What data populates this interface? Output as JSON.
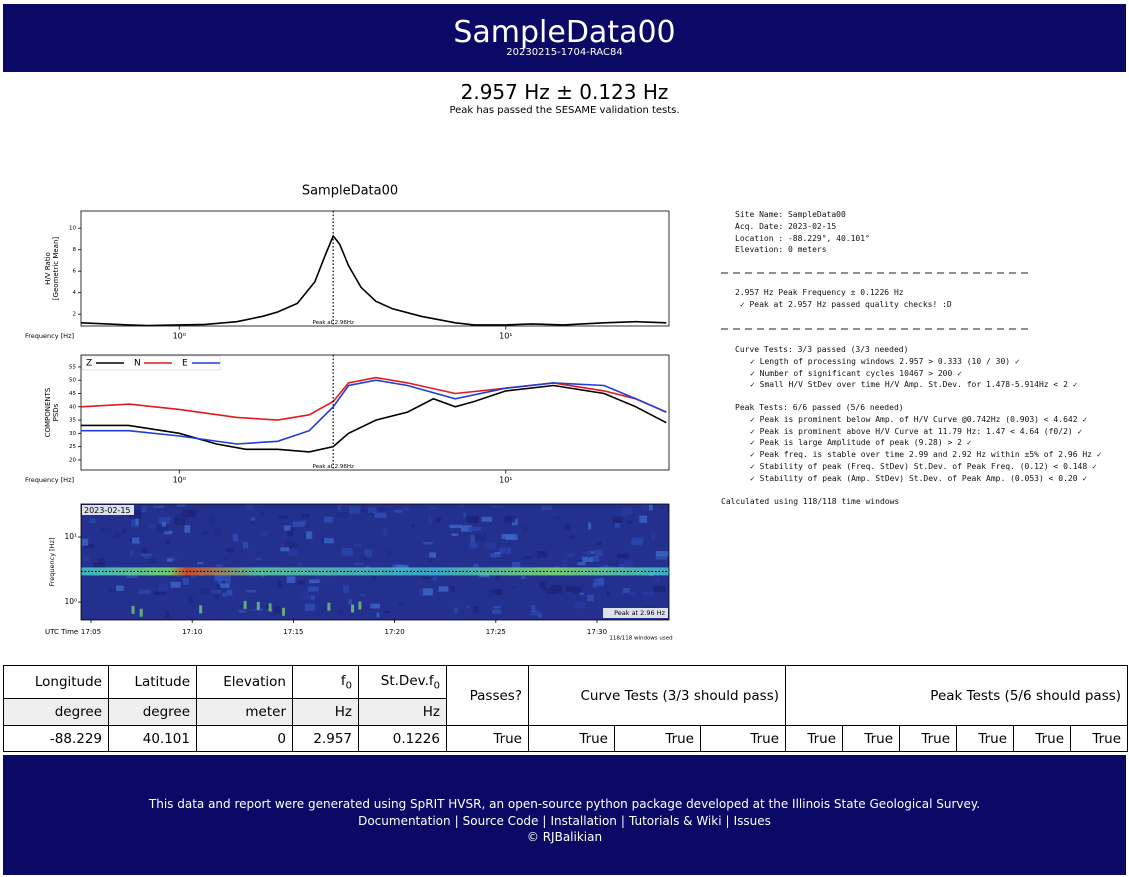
{
  "header": {
    "title": "SampleData00",
    "subtitle": "20230215-1704-RAC84"
  },
  "result": {
    "headline": "2.957 Hz ± 0.123 Hz",
    "note": "Peak has passed the SESAME validation tests."
  },
  "chart_data": [
    {
      "type": "line",
      "title": "SampleData00",
      "xlabel": "Frequency [Hz]",
      "ylabel": [
        "H/V Ratio",
        "[Geometric Mean]"
      ],
      "log_x": true,
      "xlim": [
        0.5,
        31.6
      ],
      "xticks": [
        {
          "value": 1,
          "label": "10⁰"
        },
        {
          "value": 10,
          "label": "10¹"
        }
      ],
      "ylim": [
        0.9,
        11.6
      ],
      "yticks": [
        2,
        4,
        6,
        8,
        10
      ],
      "grid": false,
      "peak_frequency": 2.96,
      "annotation": "Peak at 2.96Hz",
      "series": [
        {
          "color": "#000000",
          "x": [
            0.5,
            0.6,
            0.7,
            0.8,
            1.0,
            1.2,
            1.5,
            1.8,
            2.0,
            2.3,
            2.6,
            2.8,
            2.96,
            3.1,
            3.3,
            3.6,
            4.0,
            4.5,
            5.5,
            7,
            8,
            10,
            12,
            15,
            20,
            25,
            31
          ],
          "values": [
            1.2,
            1.1,
            1.0,
            0.95,
            1.0,
            1.05,
            1.3,
            1.8,
            2.2,
            3.0,
            5.0,
            7.5,
            9.28,
            8.5,
            6.5,
            4.5,
            3.2,
            2.5,
            1.8,
            1.2,
            1.0,
            1.0,
            1.1,
            1.0,
            1.2,
            1.3,
            1.2
          ]
        }
      ]
    },
    {
      "type": "line",
      "xlabel": "Frequency [Hz]",
      "ylabel": [
        "COMPONENTS",
        "PSDs"
      ],
      "log_x": true,
      "xlim": [
        0.5,
        31.6
      ],
      "xticks": [
        {
          "value": 1,
          "label": "10⁰"
        },
        {
          "value": 10,
          "label": "10¹"
        }
      ],
      "ylim": [
        16.2,
        59.5
      ],
      "yticks": [
        20,
        25,
        30,
        35,
        40,
        45,
        50,
        55
      ],
      "grid": false,
      "legend": "upper left",
      "peak_frequency": 2.96,
      "annotation": "Peak at 2.96Hz",
      "series": [
        {
          "name": "Z",
          "color": "#000000",
          "x": [
            0.5,
            0.7,
            1.0,
            1.3,
            1.6,
            2.0,
            2.5,
            2.96,
            3.3,
            4,
            5,
            6,
            7,
            8,
            10,
            14,
            20,
            25,
            31
          ],
          "values": [
            33,
            33,
            30,
            26,
            24,
            24,
            23,
            25,
            30,
            35,
            38,
            43,
            40,
            42,
            46,
            48,
            45,
            40,
            34
          ]
        },
        {
          "name": "N",
          "color": "#e41a1c",
          "x": [
            0.5,
            0.7,
            1,
            1.5,
            2,
            2.5,
            2.96,
            3.3,
            4,
            5,
            7,
            10,
            14,
            20,
            25,
            31
          ],
          "values": [
            40,
            41,
            39,
            36,
            35,
            37,
            42,
            49,
            51,
            49,
            45,
            47,
            49,
            46,
            43,
            38
          ]
        },
        {
          "name": "E",
          "color": "#1f3fd8",
          "x": [
            0.5,
            0.7,
            1,
            1.5,
            2,
            2.5,
            2.96,
            3.3,
            4,
            5,
            7,
            10,
            14,
            20,
            25,
            31
          ],
          "values": [
            31,
            31,
            29,
            26,
            27,
            31,
            40,
            48,
            50,
            48,
            43,
            47,
            49,
            48,
            43,
            38
          ]
        }
      ]
    }
  ],
  "spectrogram": {
    "date_label": "2023-02-15",
    "ylabel": "Frequency [Hz]",
    "log_y": true,
    "ylim": [
      0.53,
      32.2
    ],
    "yticks": [
      {
        "value": 10,
        "label": "10¹"
      },
      {
        "value": 1,
        "label": "10⁰"
      }
    ],
    "xlabel": "UTC Time",
    "xticks": [
      "17:05",
      "17:10",
      "17:15",
      "17:20",
      "17:25",
      "17:30"
    ],
    "peak_frequency": 2.96,
    "annotation": "Peak at 2.96 Hz",
    "windows_note": "118/118 windows used"
  },
  "report": {
    "site_lines": [
      "Site Name: SampleData00",
      "Acq. Date: 2023-02-15",
      "Location : -88.229°, 40.101°",
      "Elevation: 0 meters"
    ],
    "peak_lines": [
      "2.957 Hz Peak Frequency ± 0.1226 Hz",
      " ✓ Peak at 2.957 Hz passed quality checks! :D"
    ],
    "curve_tests": {
      "title": "Curve Tests: 3/3 passed (3/3 needed)",
      "items": [
        "✓ Length of processing windows 2.957 > 0.333 (10 / 30) ✓",
        "✓ Number of significant cycles 10467 > 200 ✓",
        "✓ Small H/V StDev over time H/V Amp. St.Dev. for 1.478-5.914Hz < 2 ✓"
      ]
    },
    "peak_tests": {
      "title": "Peak Tests: 6/6 passed (5/6 needed)",
      "items": [
        "✓ Peak is prominent below Amp. of H/V Curve @0.742Hz (0.903) < 4.642 ✓",
        "✓ Peak is prominent above H/V Curve at 11.79 Hz: 1.47 < 4.64 (f0/2) ✓",
        "✓ Peak is large Amplitude of peak (9.28) > 2 ✓",
        "✓ Peak freq. is stable over time 2.99 and 2.92 Hz within ±5% of 2.96 Hz ✓",
        "✓ Stability of peak (Freq. StDev) St.Dev. of Peak Freq. (0.12) < 0.148 ✓",
        "✓ Stability of peak (Amp. StDev) St.Dev. of Peak Amp. (0.053) < 0.20 ✓"
      ]
    },
    "windows_line": "Calculated using 118/118 time windows"
  },
  "table": {
    "headers": [
      "Longitude",
      "Latitude",
      "Elevation",
      {
        "main": "f",
        "sub": "0"
      },
      {
        "main": "St.Dev.f",
        "sub": "0"
      },
      "Passes?",
      "Curve Tests (3/3 should pass)",
      "Peak Tests (5/6 should pass)"
    ],
    "units": [
      "degree",
      "degree",
      "meter",
      "Hz",
      "Hz"
    ],
    "row": [
      -88.229,
      40.101,
      0,
      2.957,
      0.1226,
      "True",
      "True",
      "True",
      "True",
      "True",
      "True",
      "True",
      "True",
      "True",
      "True"
    ]
  },
  "footer": {
    "line1": "This data and report were generated using SpRIT HVSR, an open-source python package developed at the Illinois State Geological Survey.",
    "links": [
      "Documentation",
      "Source Code",
      "Installation",
      "Tutorials & Wiki",
      "Issues"
    ],
    "separator": "|",
    "copyright": "© RJBalikian"
  }
}
